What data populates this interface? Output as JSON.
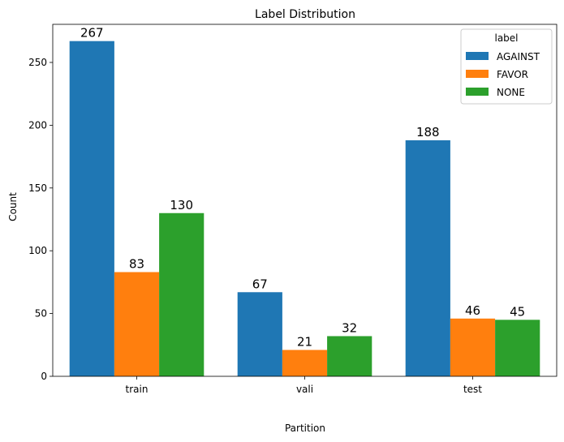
{
  "chart_data": {
    "type": "bar",
    "title": "Label Distribution",
    "xlabel": "Partition",
    "ylabel": "Count",
    "categories": [
      "train",
      "vali",
      "test"
    ],
    "series": [
      {
        "name": "AGAINST",
        "values": [
          267,
          67,
          188
        ],
        "color": "#1f77b4"
      },
      {
        "name": "FAVOR",
        "values": [
          83,
          21,
          46
        ],
        "color": "#ff7f0e"
      },
      {
        "name": "NONE",
        "values": [
          130,
          32,
          45
        ],
        "color": "#2ca02c"
      }
    ],
    "ylim": [
      0,
      280.35
    ],
    "yticks": [
      0,
      50,
      100,
      150,
      200,
      250
    ],
    "grid": false,
    "legend": {
      "title": "label",
      "placement": "top-right"
    }
  }
}
